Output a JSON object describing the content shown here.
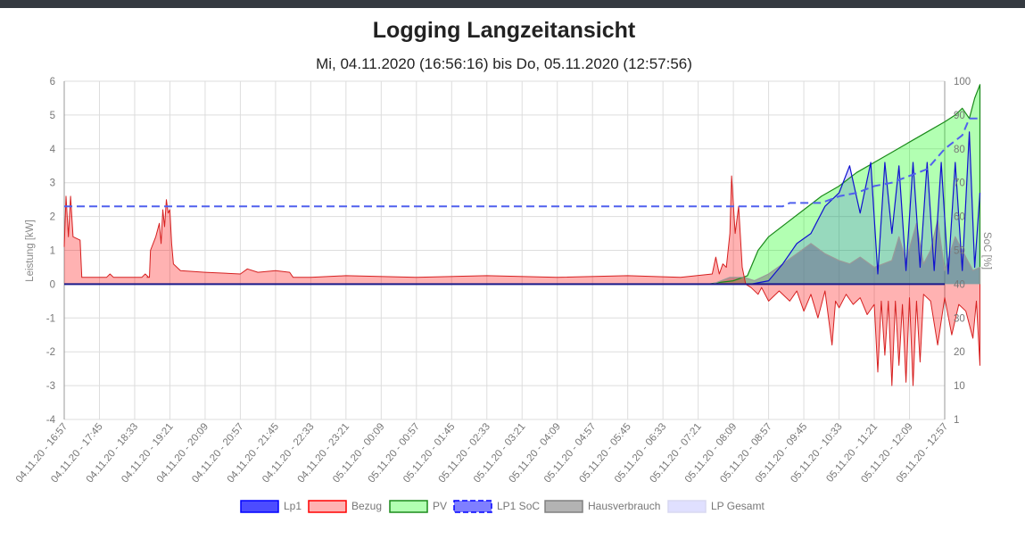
{
  "title": "Logging Langzeitansicht",
  "subtitle": "Mi, 04.11.2020 (16:56:16) bis Do, 05.11.2020 (12:57:56)",
  "colors": {
    "lp1": "#0000ff",
    "bezug": "#ff0000",
    "pv": "#00ff00",
    "soc": "#0000ff",
    "haus": "#808080",
    "lp_gesamt": "#ccccff"
  },
  "chart_data": {
    "type": "line",
    "y_left": {
      "label": "Leistung [kW]",
      "min": -4,
      "max": 6,
      "ticks": [
        "6",
        "5",
        "4",
        "3",
        "2",
        "1",
        "0",
        "-1",
        "-2",
        "-3",
        "-4"
      ]
    },
    "y_right": {
      "label": "SoC [%]",
      "ticks": [
        "100",
        "90",
        "80",
        "70",
        "60",
        "50",
        "40",
        "30",
        "20",
        "10",
        "1"
      ]
    },
    "x_labels": [
      "04.11.20 - 16:57",
      "04.11.20 - 17:45",
      "04.11.20 - 18:33",
      "04.11.20 - 19:21",
      "04.11.20 - 20:09",
      "04.11.20 - 20:57",
      "04.11.20 - 21:45",
      "04.11.20 - 22:33",
      "04.11.20 - 23:21",
      "05.11.20 - 00:09",
      "05.11.20 - 00:57",
      "05.11.20 - 01:45",
      "05.11.20 - 02:33",
      "05.11.20 - 03:21",
      "05.11.20 - 04:09",
      "05.11.20 - 04:57",
      "05.11.20 - 05:45",
      "05.11.20 - 06:33",
      "05.11.20 - 07:21",
      "05.11.20 - 08:09",
      "05.11.20 - 08:57",
      "05.11.20 - 09:45",
      "05.11.20 - 10:33",
      "05.11.20 - 11:21",
      "05.11.20 - 12:09",
      "05.11.20 - 12:57"
    ],
    "series": [
      {
        "key": "lp1",
        "name": "Lp1",
        "axis": "left",
        "points": [
          [
            0,
            0
          ],
          [
            19,
            0
          ],
          [
            19.5,
            0
          ],
          [
            20,
            0.1
          ],
          [
            20.4,
            0.6
          ],
          [
            20.8,
            1.2
          ],
          [
            21.2,
            1.5
          ],
          [
            21.6,
            2.3
          ],
          [
            22,
            2.7
          ],
          [
            22.3,
            3.5
          ],
          [
            22.6,
            2.1
          ],
          [
            22.9,
            3.6
          ],
          [
            23.1,
            0.3
          ],
          [
            23.3,
            3.6
          ],
          [
            23.5,
            1.5
          ],
          [
            23.7,
            3.5
          ],
          [
            23.9,
            0.4
          ],
          [
            24.1,
            3.6
          ],
          [
            24.3,
            0.5
          ],
          [
            24.5,
            3.6
          ],
          [
            24.7,
            0.4
          ],
          [
            24.9,
            3.6
          ],
          [
            25.1,
            0.3
          ],
          [
            25.3,
            3.6
          ],
          [
            25.5,
            0.4
          ],
          [
            25.7,
            4.5
          ],
          [
            25.85,
            0.5
          ],
          [
            26,
            2.7
          ]
        ]
      },
      {
        "key": "bezug",
        "name": "Bezug",
        "axis": "left",
        "points": [
          [
            0,
            1.1
          ],
          [
            0.05,
            2.6
          ],
          [
            0.12,
            1.4
          ],
          [
            0.18,
            2.6
          ],
          [
            0.25,
            1.4
          ],
          [
            0.45,
            1.3
          ],
          [
            0.5,
            0.2
          ],
          [
            1.2,
            0.2
          ],
          [
            1.3,
            0.3
          ],
          [
            1.4,
            0.2
          ],
          [
            2.2,
            0.2
          ],
          [
            2.3,
            0.3
          ],
          [
            2.4,
            0.2
          ],
          [
            2.35,
            0.2
          ],
          [
            2.42,
            0.2
          ],
          [
            2.45,
            1
          ],
          [
            2.6,
            1.4
          ],
          [
            2.7,
            1.8
          ],
          [
            2.75,
            1.2
          ],
          [
            2.8,
            2.2
          ],
          [
            2.85,
            1.7
          ],
          [
            2.9,
            2.5
          ],
          [
            2.95,
            2.1
          ],
          [
            3.0,
            2.2
          ],
          [
            3.05,
            1.2
          ],
          [
            3.1,
            0.6
          ],
          [
            3.3,
            0.4
          ],
          [
            4,
            0.35
          ],
          [
            5,
            0.3
          ],
          [
            5.2,
            0.45
          ],
          [
            5.5,
            0.35
          ],
          [
            6,
            0.4
          ],
          [
            6.4,
            0.35
          ],
          [
            6.5,
            0.2
          ],
          [
            7,
            0.2
          ],
          [
            8,
            0.25
          ],
          [
            10,
            0.2
          ],
          [
            12,
            0.25
          ],
          [
            14,
            0.2
          ],
          [
            16,
            0.25
          ],
          [
            17.5,
            0.2
          ],
          [
            18.4,
            0.3
          ],
          [
            18.5,
            0.8
          ],
          [
            18.6,
            0.3
          ],
          [
            18.7,
            0.6
          ],
          [
            18.8,
            0.5
          ],
          [
            18.9,
            1.5
          ],
          [
            18.95,
            3.2
          ],
          [
            19.05,
            1.5
          ],
          [
            19.15,
            2.3
          ],
          [
            19.25,
            0.5
          ],
          [
            19.35,
            0
          ],
          [
            19.5,
            -0.1
          ],
          [
            19.7,
            -0.3
          ],
          [
            19.8,
            -0.1
          ],
          [
            20,
            -0.5
          ],
          [
            20.3,
            -0.2
          ],
          [
            20.6,
            -0.5
          ],
          [
            20.8,
            -0.2
          ],
          [
            21,
            -0.8
          ],
          [
            21.2,
            -0.3
          ],
          [
            21.4,
            -1.0
          ],
          [
            21.6,
            -0.2
          ],
          [
            21.8,
            -1.8
          ],
          [
            21.9,
            -0.5
          ],
          [
            22,
            -0.7
          ],
          [
            22.2,
            -0.3
          ],
          [
            22.4,
            -0.6
          ],
          [
            22.6,
            -0.4
          ],
          [
            22.8,
            -0.9
          ],
          [
            23,
            -0.6
          ],
          [
            23.1,
            -2.6
          ],
          [
            23.2,
            -0.5
          ],
          [
            23.3,
            -2.1
          ],
          [
            23.4,
            -0.5
          ],
          [
            23.5,
            -3.0
          ],
          [
            23.6,
            -0.5
          ],
          [
            23.7,
            -2.4
          ],
          [
            23.8,
            -0.6
          ],
          [
            23.9,
            -2.9
          ],
          [
            24.0,
            -0.4
          ],
          [
            24.1,
            -3.0
          ],
          [
            24.2,
            -0.5
          ],
          [
            24.3,
            -2.3
          ],
          [
            24.4,
            -0.3
          ],
          [
            24.6,
            -0.5
          ],
          [
            24.8,
            -1.8
          ],
          [
            25,
            -0.4
          ],
          [
            25.2,
            -1.5
          ],
          [
            25.4,
            -0.6
          ],
          [
            25.6,
            -0.8
          ],
          [
            25.8,
            -1.6
          ],
          [
            25.9,
            -0.5
          ],
          [
            26,
            -2.4
          ],
          [
            26,
            0
          ]
        ]
      },
      {
        "key": "pv",
        "name": "PV",
        "axis": "left",
        "points": [
          [
            0,
            0
          ],
          [
            18.3,
            0
          ],
          [
            18.6,
            0.05
          ],
          [
            19,
            0.1
          ],
          [
            19.4,
            0.25
          ],
          [
            19.7,
            1.0
          ],
          [
            20,
            1.4
          ],
          [
            20.5,
            1.8
          ],
          [
            21,
            2.2
          ],
          [
            21.5,
            2.6
          ],
          [
            22,
            2.9
          ],
          [
            22.5,
            3.3
          ],
          [
            23,
            3.6
          ],
          [
            23.5,
            3.9
          ],
          [
            24,
            4.2
          ],
          [
            24.5,
            4.5
          ],
          [
            25,
            4.8
          ],
          [
            25.3,
            5.0
          ],
          [
            25.5,
            5.2
          ],
          [
            25.7,
            4.9
          ],
          [
            25.85,
            5.5
          ],
          [
            26,
            5.9
          ],
          [
            26,
            0
          ]
        ]
      },
      {
        "key": "soc",
        "name": "LP1 SoC",
        "axis": "right",
        "points": [
          [
            0,
            63
          ],
          [
            20.1,
            63
          ],
          [
            20.4,
            63
          ],
          [
            20.6,
            64
          ],
          [
            21.5,
            64
          ],
          [
            22.0,
            66
          ],
          [
            22.5,
            67
          ],
          [
            23.0,
            69
          ],
          [
            23.5,
            70
          ],
          [
            24.0,
            72
          ],
          [
            24.5,
            74
          ],
          [
            25.0,
            80
          ],
          [
            25.5,
            84
          ],
          [
            25.7,
            89
          ],
          [
            26,
            89
          ]
        ]
      },
      {
        "key": "haus",
        "name": "Hausverbrauch",
        "axis": "left",
        "points": [
          [
            0,
            0
          ],
          [
            18.4,
            0
          ],
          [
            18.9,
            0.2
          ],
          [
            19.3,
            0.2
          ],
          [
            19.6,
            0.1
          ],
          [
            20,
            0.3
          ],
          [
            20.4,
            0.6
          ],
          [
            20.8,
            0.9
          ],
          [
            21.2,
            1.2
          ],
          [
            21.6,
            0.9
          ],
          [
            22,
            0.7
          ],
          [
            22.3,
            0.6
          ],
          [
            22.6,
            0.8
          ],
          [
            23,
            0.5
          ],
          [
            23.5,
            0.7
          ],
          [
            23.7,
            1.4
          ],
          [
            23.9,
            0.7
          ],
          [
            24.2,
            1.8
          ],
          [
            24.4,
            0.6
          ],
          [
            24.6,
            1.0
          ],
          [
            24.8,
            1.9
          ],
          [
            25,
            0.4
          ],
          [
            25.3,
            1.4
          ],
          [
            25.6,
            0.8
          ],
          [
            25.8,
            0.4
          ],
          [
            26,
            0.5
          ],
          [
            26,
            0
          ]
        ]
      },
      {
        "key": "lp_gesamt",
        "name": "LP Gesamt",
        "axis": "left",
        "points": []
      }
    ],
    "legend": "bottom"
  }
}
